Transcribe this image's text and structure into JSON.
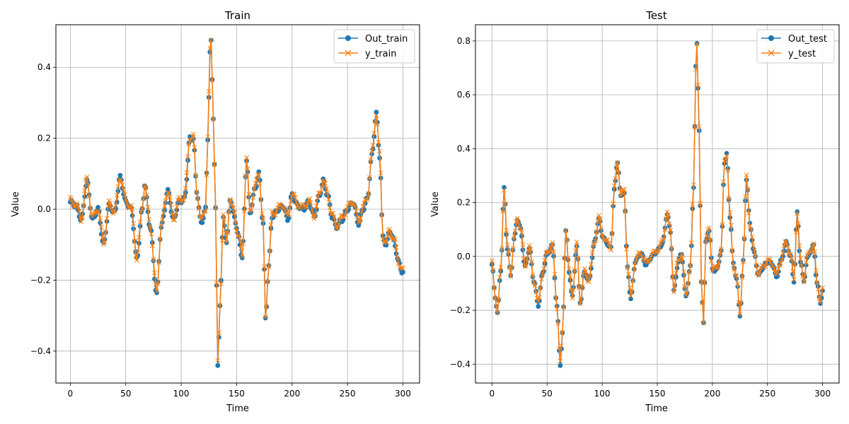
{
  "chart_data": [
    {
      "type": "line",
      "title": "Train",
      "xlabel": "Time",
      "ylabel": "Value",
      "xlim": [
        -13,
        315
      ],
      "ylim": [
        -0.49,
        0.52
      ],
      "xticks": [
        0,
        50,
        100,
        150,
        200,
        250,
        300
      ],
      "xtick_labels": [
        "0",
        "50",
        "100",
        "150",
        "200",
        "250",
        "300"
      ],
      "yticks": [
        -0.4,
        -0.2,
        0.0,
        0.2,
        0.4
      ],
      "ytick_labels": [
        "−0.4",
        "−0.2",
        "0.0",
        "0.2",
        "0.4"
      ],
      "grid": true,
      "legend_position": "top-right",
      "series": [
        {
          "name": "Out_train",
          "color": "#1f77b4",
          "marker": "circle"
        },
        {
          "name": "y_train",
          "color": "#ff7f0e",
          "marker": "x"
        }
      ],
      "keypoints": [
        [
          0,
          0.02
        ],
        [
          5,
          0.01
        ],
        [
          10,
          -0.03
        ],
        [
          15,
          0.08
        ],
        [
          20,
          -0.03
        ],
        [
          25,
          0.0
        ],
        [
          30,
          -0.1
        ],
        [
          35,
          0.01
        ],
        [
          40,
          -0.01
        ],
        [
          45,
          0.09
        ],
        [
          50,
          0.02
        ],
        [
          55,
          0.0
        ],
        [
          60,
          -0.14
        ],
        [
          65,
          0.0
        ],
        [
          67,
          0.07
        ],
        [
          72,
          -0.05
        ],
        [
          78,
          -0.24
        ],
        [
          82,
          -0.05
        ],
        [
          88,
          0.05
        ],
        [
          93,
          -0.03
        ],
        [
          98,
          0.02
        ],
        [
          103,
          0.03
        ],
        [
          108,
          0.2
        ],
        [
          111,
          0.2
        ],
        [
          114,
          0.05
        ],
        [
          118,
          -0.04
        ],
        [
          122,
          0.0
        ],
        [
          124,
          0.2
        ],
        [
          126,
          0.44
        ],
        [
          127,
          0.47
        ],
        [
          129,
          0.26
        ],
        [
          131,
          0.0
        ],
        [
          133,
          -0.44
        ],
        [
          135,
          -0.27
        ],
        [
          138,
          -0.02
        ],
        [
          141,
          -0.1
        ],
        [
          144,
          0.03
        ],
        [
          147,
          -0.01
        ],
        [
          152,
          -0.08
        ],
        [
          155,
          -0.14
        ],
        [
          159,
          0.14
        ],
        [
          162,
          -0.01
        ],
        [
          167,
          0.06
        ],
        [
          170,
          0.1
        ],
        [
          174,
          -0.04
        ],
        [
          176,
          -0.31
        ],
        [
          179,
          -0.16
        ],
        [
          182,
          -0.02
        ],
        [
          188,
          0.0
        ],
        [
          192,
          0.01
        ],
        [
          196,
          -0.03
        ],
        [
          200,
          0.04
        ],
        [
          205,
          0.01
        ],
        [
          210,
          0.0
        ],
        [
          215,
          0.02
        ],
        [
          220,
          -0.02
        ],
        [
          225,
          0.04
        ],
        [
          228,
          0.08
        ],
        [
          232,
          0.04
        ],
        [
          236,
          -0.02
        ],
        [
          240,
          -0.05
        ],
        [
          245,
          -0.03
        ],
        [
          250,
          0.0
        ],
        [
          255,
          0.02
        ],
        [
          260,
          -0.04
        ],
        [
          264,
          0.0
        ],
        [
          268,
          0.03
        ],
        [
          272,
          0.15
        ],
        [
          276,
          0.27
        ],
        [
          279,
          0.15
        ],
        [
          282,
          -0.08
        ],
        [
          285,
          -0.1
        ],
        [
          288,
          -0.06
        ],
        [
          292,
          -0.09
        ],
        [
          296,
          -0.15
        ],
        [
          300,
          -0.18
        ]
      ]
    },
    {
      "type": "line",
      "title": "Test",
      "xlabel": "Time",
      "ylabel": "Value",
      "xlim": [
        -15,
        315
      ],
      "ylim": [
        -0.47,
        0.86
      ],
      "xticks": [
        0,
        50,
        100,
        150,
        200,
        250,
        300
      ],
      "xtick_labels": [
        "0",
        "50",
        "100",
        "150",
        "200",
        "250",
        "300"
      ],
      "yticks": [
        -0.4,
        -0.2,
        0.0,
        0.2,
        0.4,
        0.6,
        0.8
      ],
      "ytick_labels": [
        "−0.4",
        "−0.2",
        "0.0",
        "0.2",
        "0.4",
        "0.6",
        "0.8"
      ],
      "grid": true,
      "legend_position": "top-right",
      "series": [
        {
          "name": "Out_test",
          "color": "#1f77b4",
          "marker": "circle"
        },
        {
          "name": "y_test",
          "color": "#ff7f0e",
          "marker": "x"
        }
      ],
      "keypoints": [
        [
          0,
          -0.03
        ],
        [
          3,
          -0.15
        ],
        [
          5,
          -0.21
        ],
        [
          8,
          -0.05
        ],
        [
          11,
          0.25
        ],
        [
          14,
          0.03
        ],
        [
          17,
          -0.07
        ],
        [
          20,
          0.06
        ],
        [
          23,
          0.14
        ],
        [
          26,
          0.1
        ],
        [
          30,
          -0.04
        ],
        [
          34,
          0.03
        ],
        [
          38,
          -0.09
        ],
        [
          42,
          -0.18
        ],
        [
          46,
          -0.06
        ],
        [
          50,
          0.01
        ],
        [
          55,
          0.04
        ],
        [
          59,
          -0.19
        ],
        [
          62,
          -0.4
        ],
        [
          64,
          -0.29
        ],
        [
          67,
          0.1
        ],
        [
          70,
          -0.06
        ],
        [
          73,
          -0.15
        ],
        [
          77,
          0.04
        ],
        [
          80,
          -0.17
        ],
        [
          84,
          -0.06
        ],
        [
          88,
          -0.09
        ],
        [
          93,
          0.05
        ],
        [
          97,
          0.14
        ],
        [
          100,
          0.08
        ],
        [
          104,
          0.05
        ],
        [
          108,
          0.03
        ],
        [
          111,
          0.25
        ],
        [
          114,
          0.35
        ],
        [
          117,
          0.22
        ],
        [
          120,
          0.24
        ],
        [
          123,
          -0.04
        ],
        [
          126,
          -0.16
        ],
        [
          130,
          -0.02
        ],
        [
          135,
          0.01
        ],
        [
          140,
          -0.03
        ],
        [
          145,
          0.0
        ],
        [
          150,
          0.02
        ],
        [
          155,
          0.05
        ],
        [
          159,
          0.16
        ],
        [
          162,
          0.09
        ],
        [
          165,
          -0.13
        ],
        [
          169,
          -0.02
        ],
        [
          172,
          0.01
        ],
        [
          176,
          -0.15
        ],
        [
          180,
          -0.04
        ],
        [
          183,
          0.26
        ],
        [
          185,
          0.7
        ],
        [
          186,
          0.79
        ],
        [
          188,
          0.47
        ],
        [
          190,
          -0.1
        ],
        [
          192,
          -0.24
        ],
        [
          194,
          0.05
        ],
        [
          197,
          0.1
        ],
        [
          200,
          -0.05
        ],
        [
          204,
          -0.05
        ],
        [
          208,
          0.02
        ],
        [
          211,
          0.35
        ],
        [
          213,
          0.38
        ],
        [
          216,
          0.15
        ],
        [
          219,
          -0.03
        ],
        [
          222,
          -0.08
        ],
        [
          225,
          -0.22
        ],
        [
          228,
          -0.02
        ],
        [
          231,
          0.29
        ],
        [
          234,
          0.12
        ],
        [
          238,
          0.01
        ],
        [
          242,
          -0.07
        ],
        [
          246,
          -0.04
        ],
        [
          250,
          -0.02
        ],
        [
          255,
          -0.03
        ],
        [
          258,
          -0.08
        ],
        [
          262,
          -0.02
        ],
        [
          267,
          0.05
        ],
        [
          271,
          0.0
        ],
        [
          274,
          -0.09
        ],
        [
          277,
          0.16
        ],
        [
          280,
          -0.02
        ],
        [
          283,
          -0.09
        ],
        [
          286,
          -0.01
        ],
        [
          289,
          0.02
        ],
        [
          292,
          0.04
        ],
        [
          295,
          -0.1
        ],
        [
          298,
          -0.17
        ],
        [
          300,
          -0.13
        ]
      ]
    }
  ]
}
